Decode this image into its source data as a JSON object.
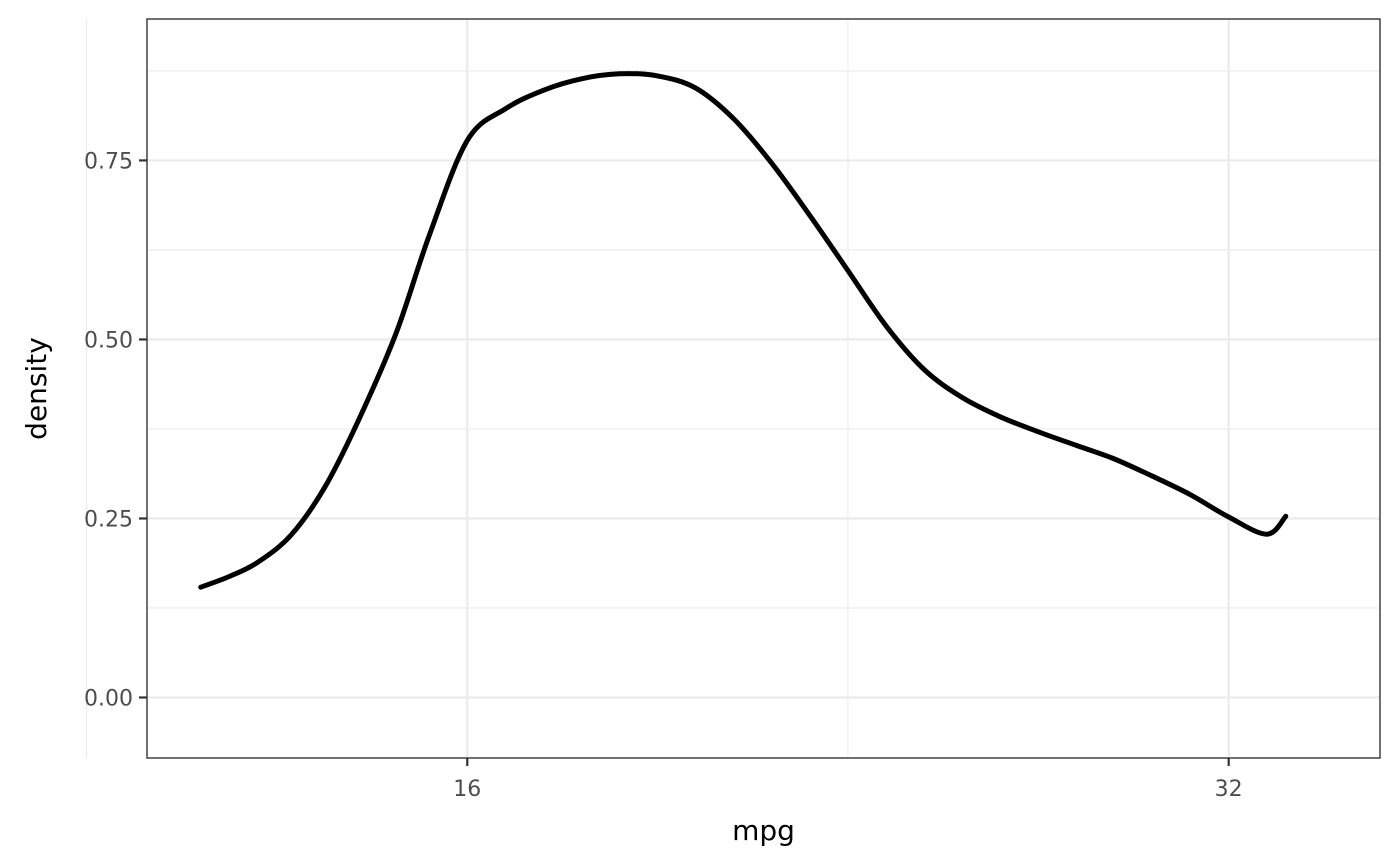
{
  "chart_data": {
    "type": "line",
    "geom": "density",
    "xlabel": "mpg",
    "ylabel": "density",
    "xlim": [
      9.27,
      35.18
    ],
    "ylim": [
      -0.0845,
      0.9475
    ],
    "x_ticks": [
      16,
      32
    ],
    "x_tick_labels": [
      "16",
      "32"
    ],
    "x_minor_ticks": [
      8,
      24
    ],
    "y_ticks": [
      0,
      0.25,
      0.5,
      0.75
    ],
    "y_tick_labels": [
      "0.00",
      "0.25",
      "0.50",
      "0.75"
    ],
    "y_minor_ticks": [
      0.125,
      0.375,
      0.625,
      0.875
    ],
    "grid": true,
    "series": [
      {
        "color": "#000000",
        "x": [
          10.4,
          11.0,
          11.6,
          12.3,
          13.0,
          13.7,
          14.5,
          15.2,
          16.0,
          16.8,
          17.6,
          18.4,
          19.2,
          20.0,
          20.8,
          21.6,
          22.4,
          23.2,
          24.0,
          24.8,
          25.6,
          26.4,
          27.2,
          28.0,
          28.8,
          29.6,
          30.4,
          31.2,
          32.0,
          32.8,
          33.2
        ],
        "y": [
          0.154,
          0.169,
          0.189,
          0.227,
          0.293,
          0.385,
          0.508,
          0.645,
          0.778,
          0.822,
          0.848,
          0.864,
          0.871,
          0.868,
          0.851,
          0.808,
          0.746,
          0.673,
          0.596,
          0.519,
          0.458,
          0.419,
          0.392,
          0.371,
          0.352,
          0.333,
          0.309,
          0.283,
          0.252,
          0.228,
          0.253
        ]
      }
    ]
  }
}
